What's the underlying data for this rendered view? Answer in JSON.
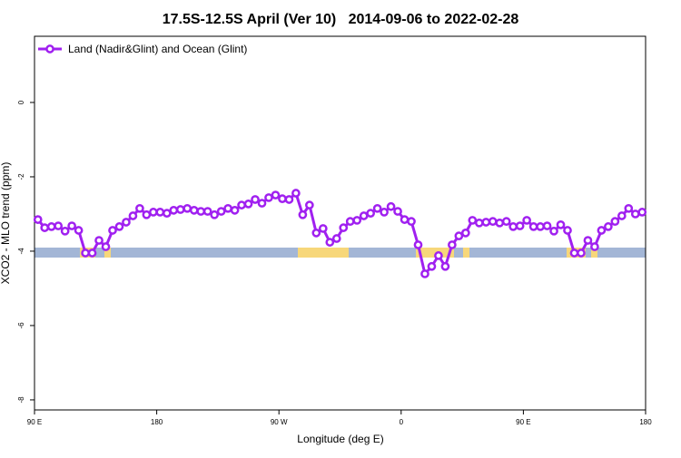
{
  "chart_data": {
    "type": "line",
    "title": "17.5S-12.5S April (Ver 10)   2014-09-06 to 2022-02-28",
    "x_label": "Longitude (deg E)",
    "y_label": "XCO2 - MLO trend (ppm)",
    "xlim": [
      90,
      540
    ],
    "ylim": [
      -8.27,
      1.78
    ],
    "xticks": [
      {
        "value": 90,
        "label": "90 E"
      },
      180,
      {
        "value": 270,
        "label": "90 W"
      },
      {
        "value": 360,
        "label": "0"
      },
      {
        "value": 450,
        "label": "90 E"
      },
      {
        "value": 540,
        "label": "180"
      }
    ],
    "yticks": [
      0,
      -2,
      -4,
      -6,
      -8
    ],
    "legend_position": "top-left",
    "x": [
      92.5,
      97.5,
      102.5,
      107.5,
      112.5,
      117.5,
      122.5,
      127.5,
      132.5,
      137.5,
      142.5,
      147.5,
      152.5,
      157.5,
      162.5,
      167.5,
      172.5,
      177.5,
      182.5,
      187.5,
      192.5,
      197.5,
      202.5,
      207.5,
      212.5,
      217.5,
      222.5,
      227.5,
      232.5,
      237.5,
      242.5,
      247.5,
      252.5,
      257.5,
      262.5,
      267.5,
      272.5,
      277.5,
      282.5,
      287.5,
      292.5,
      297.5,
      302.5,
      307.5,
      312.5,
      317.5,
      322.5,
      327.5,
      332.5,
      337.5,
      342.5,
      347.5,
      352.5,
      357.5,
      362.5,
      367.5,
      372.5,
      377.5,
      382.5,
      387.5,
      392.5,
      397.5,
      402.5,
      407.5,
      412.5,
      417.5,
      422.5,
      427.5,
      432.5,
      437.5,
      442.5,
      447.5,
      452.5,
      457.5,
      462.5,
      467.5,
      472.5,
      477.5,
      482.5,
      487.5,
      492.5,
      497.5,
      502.5,
      507.5,
      512.5,
      517.5,
      522.5,
      527.5,
      532.5,
      537.5
    ],
    "series": [
      {
        "name": "Land (Nadir&Glint) and Ocean (Glint)",
        "color": "#a020f0",
        "values": [
          -3.15,
          -3.37,
          -3.34,
          -3.32,
          -3.46,
          -3.32,
          -3.44,
          -4.05,
          -4.05,
          -3.71,
          -3.88,
          -3.44,
          -3.34,
          -3.22,
          -3.05,
          -2.85,
          -3.02,
          -2.95,
          -2.95,
          -2.98,
          -2.9,
          -2.88,
          -2.85,
          -2.9,
          -2.93,
          -2.93,
          -3.02,
          -2.93,
          -2.85,
          -2.9,
          -2.76,
          -2.73,
          -2.61,
          -2.71,
          -2.56,
          -2.49,
          -2.59,
          -2.61,
          -2.44,
          -3.02,
          -2.76,
          -3.51,
          -3.39,
          -3.76,
          -3.66,
          -3.37,
          -3.2,
          -3.17,
          -3.05,
          -2.98,
          -2.85,
          -2.95,
          -2.8,
          -2.93,
          -3.15,
          -3.2,
          -3.83,
          -4.61,
          -4.41,
          -4.12,
          -4.41,
          -3.83,
          -3.59,
          -3.51,
          -3.17,
          -3.24,
          -3.22,
          -3.2,
          -3.24,
          -3.2,
          -3.34,
          -3.32,
          -3.17,
          -3.34,
          -3.34,
          -3.32,
          -3.46,
          -3.29,
          -3.44,
          -4.05,
          -4.05,
          -3.71,
          -3.88,
          -3.44,
          -3.34,
          -3.2,
          -3.05,
          -2.85,
          -3.0,
          -2.95
        ]
      }
    ]
  }
}
